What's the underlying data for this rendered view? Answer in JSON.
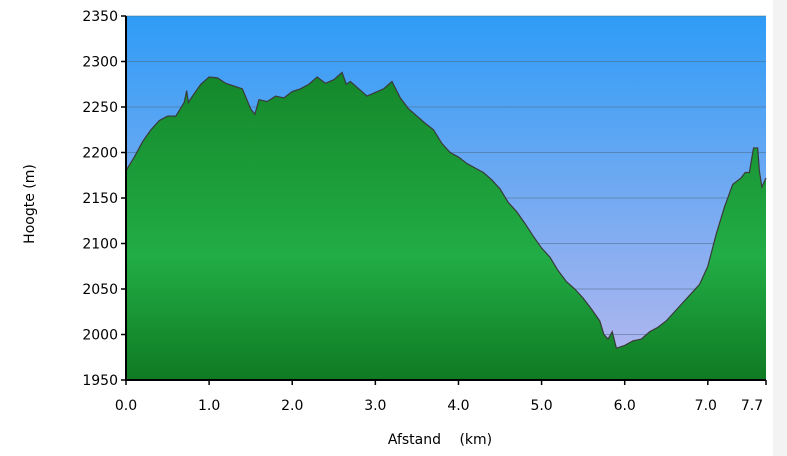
{
  "colors": {
    "sky_top": "#2e9cf6",
    "sky_bottom": "#b9b8ee",
    "fill_top": "#14872a",
    "fill_mid": "#22ad46",
    "fill_bottom": "#0f7a22",
    "outline": "#3a3a3a",
    "gridline": "#4b6f8a",
    "axis": "#000000"
  },
  "chart_data": {
    "type": "area",
    "xlabel": "Afstand",
    "xunit": "(km)",
    "ylabel": "Hoogte (m)",
    "xlim": [
      0,
      7.7
    ],
    "ylim": [
      1950,
      2350
    ],
    "x_ticks": [
      "0.0",
      "1.0",
      "2.0",
      "3.0",
      "4.0",
      "5.0",
      "6.0",
      "7.0",
      "7.7"
    ],
    "x_tick_values": [
      0,
      1,
      2,
      3,
      4,
      5,
      6,
      7,
      7.7
    ],
    "y_ticks": [
      "1950",
      "2000",
      "2050",
      "2100",
      "2150",
      "2200",
      "2250",
      "2300",
      "2350"
    ],
    "y_tick_values": [
      1950,
      2000,
      2050,
      2100,
      2150,
      2200,
      2250,
      2300,
      2350
    ],
    "grid": true,
    "series": [
      {
        "x": [
          0,
          0.1,
          0.2,
          0.3,
          0.4,
          0.5,
          0.6,
          0.7,
          0.73,
          0.75,
          0.8,
          0.9,
          1.0,
          1.1,
          1.2,
          1.3,
          1.4,
          1.5,
          1.55,
          1.6,
          1.7,
          1.8,
          1.9,
          2.0,
          2.1,
          2.2,
          2.3,
          2.4,
          2.5,
          2.6,
          2.65,
          2.7,
          2.8,
          2.9,
          3.0,
          3.1,
          3.2,
          3.3,
          3.4,
          3.5,
          3.6,
          3.7,
          3.8,
          3.9,
          4.0,
          4.1,
          4.2,
          4.3,
          4.4,
          4.5,
          4.6,
          4.7,
          4.8,
          4.9,
          5.0,
          5.1,
          5.2,
          5.3,
          5.4,
          5.5,
          5.6,
          5.7,
          5.75,
          5.8,
          5.85,
          5.9,
          6.0,
          6.1,
          6.2,
          6.3,
          6.4,
          6.5,
          6.6,
          6.7,
          6.8,
          6.9,
          7.0,
          7.1,
          7.2,
          7.3,
          7.4,
          7.45,
          7.5,
          7.55,
          7.6,
          7.62,
          7.65,
          7.7
        ],
        "values": [
          2180,
          2195,
          2212,
          2225,
          2235,
          2240,
          2240,
          2255,
          2268,
          2255,
          2262,
          2275,
          2283,
          2282,
          2276,
          2273,
          2270,
          2248,
          2242,
          2258,
          2256,
          2262,
          2260,
          2267,
          2270,
          2275,
          2283,
          2276,
          2280,
          2288,
          2275,
          2278,
          2270,
          2262,
          2266,
          2270,
          2278,
          2260,
          2248,
          2240,
          2232,
          2225,
          2210,
          2200,
          2195,
          2188,
          2183,
          2178,
          2170,
          2160,
          2145,
          2135,
          2122,
          2108,
          2095,
          2085,
          2070,
          2058,
          2050,
          2040,
          2028,
          2015,
          2000,
          1995,
          2003,
          1985,
          1988,
          1993,
          1995,
          2003,
          2008,
          2015,
          2025,
          2035,
          2045,
          2055,
          2075,
          2110,
          2140,
          2165,
          2172,
          2178,
          2178,
          2205,
          2205,
          2180,
          2162,
          2172
        ]
      }
    ]
  }
}
